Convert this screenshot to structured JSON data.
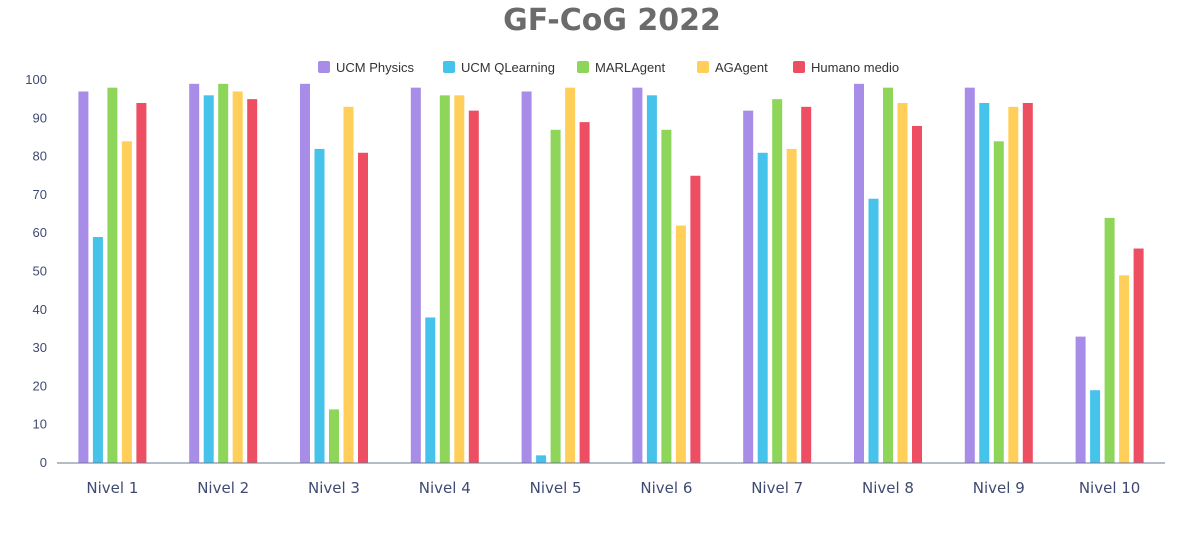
{
  "chart_data": {
    "type": "bar",
    "title": "GF-CoG 2022",
    "xlabel": "",
    "ylabel": "",
    "ylim": [
      0,
      100
    ],
    "yticks": [
      0,
      10,
      20,
      30,
      40,
      50,
      60,
      70,
      80,
      90,
      100
    ],
    "grid": false,
    "legend_position": "top-center",
    "categories": [
      "Nivel 1",
      "Nivel 2",
      "Nivel 3",
      "Nivel 4",
      "Nivel 5",
      "Nivel 6",
      "Nivel 7",
      "Nivel 8",
      "Nivel 9",
      "Nivel 10"
    ],
    "series": [
      {
        "name": "UCM Physics",
        "color": "#a78ce8",
        "values": [
          97,
          99,
          99,
          98,
          97,
          98,
          92,
          99,
          98,
          33
        ]
      },
      {
        "name": "UCM QLearning",
        "color": "#45c3ea",
        "values": [
          59,
          96,
          82,
          38,
          2,
          96,
          81,
          69,
          94,
          19
        ]
      },
      {
        "name": "MARLAgent",
        "color": "#8ed65a",
        "values": [
          98,
          99,
          14,
          96,
          87,
          87,
          95,
          98,
          84,
          64
        ]
      },
      {
        "name": "AGAgent",
        "color": "#ffcf5a",
        "values": [
          84,
          97,
          93,
          96,
          98,
          62,
          82,
          94,
          93,
          49
        ]
      },
      {
        "name": "Humano medio",
        "color": "#ee4e62",
        "values": [
          94,
          95,
          81,
          92,
          89,
          75,
          93,
          88,
          94,
          56
        ]
      }
    ]
  }
}
